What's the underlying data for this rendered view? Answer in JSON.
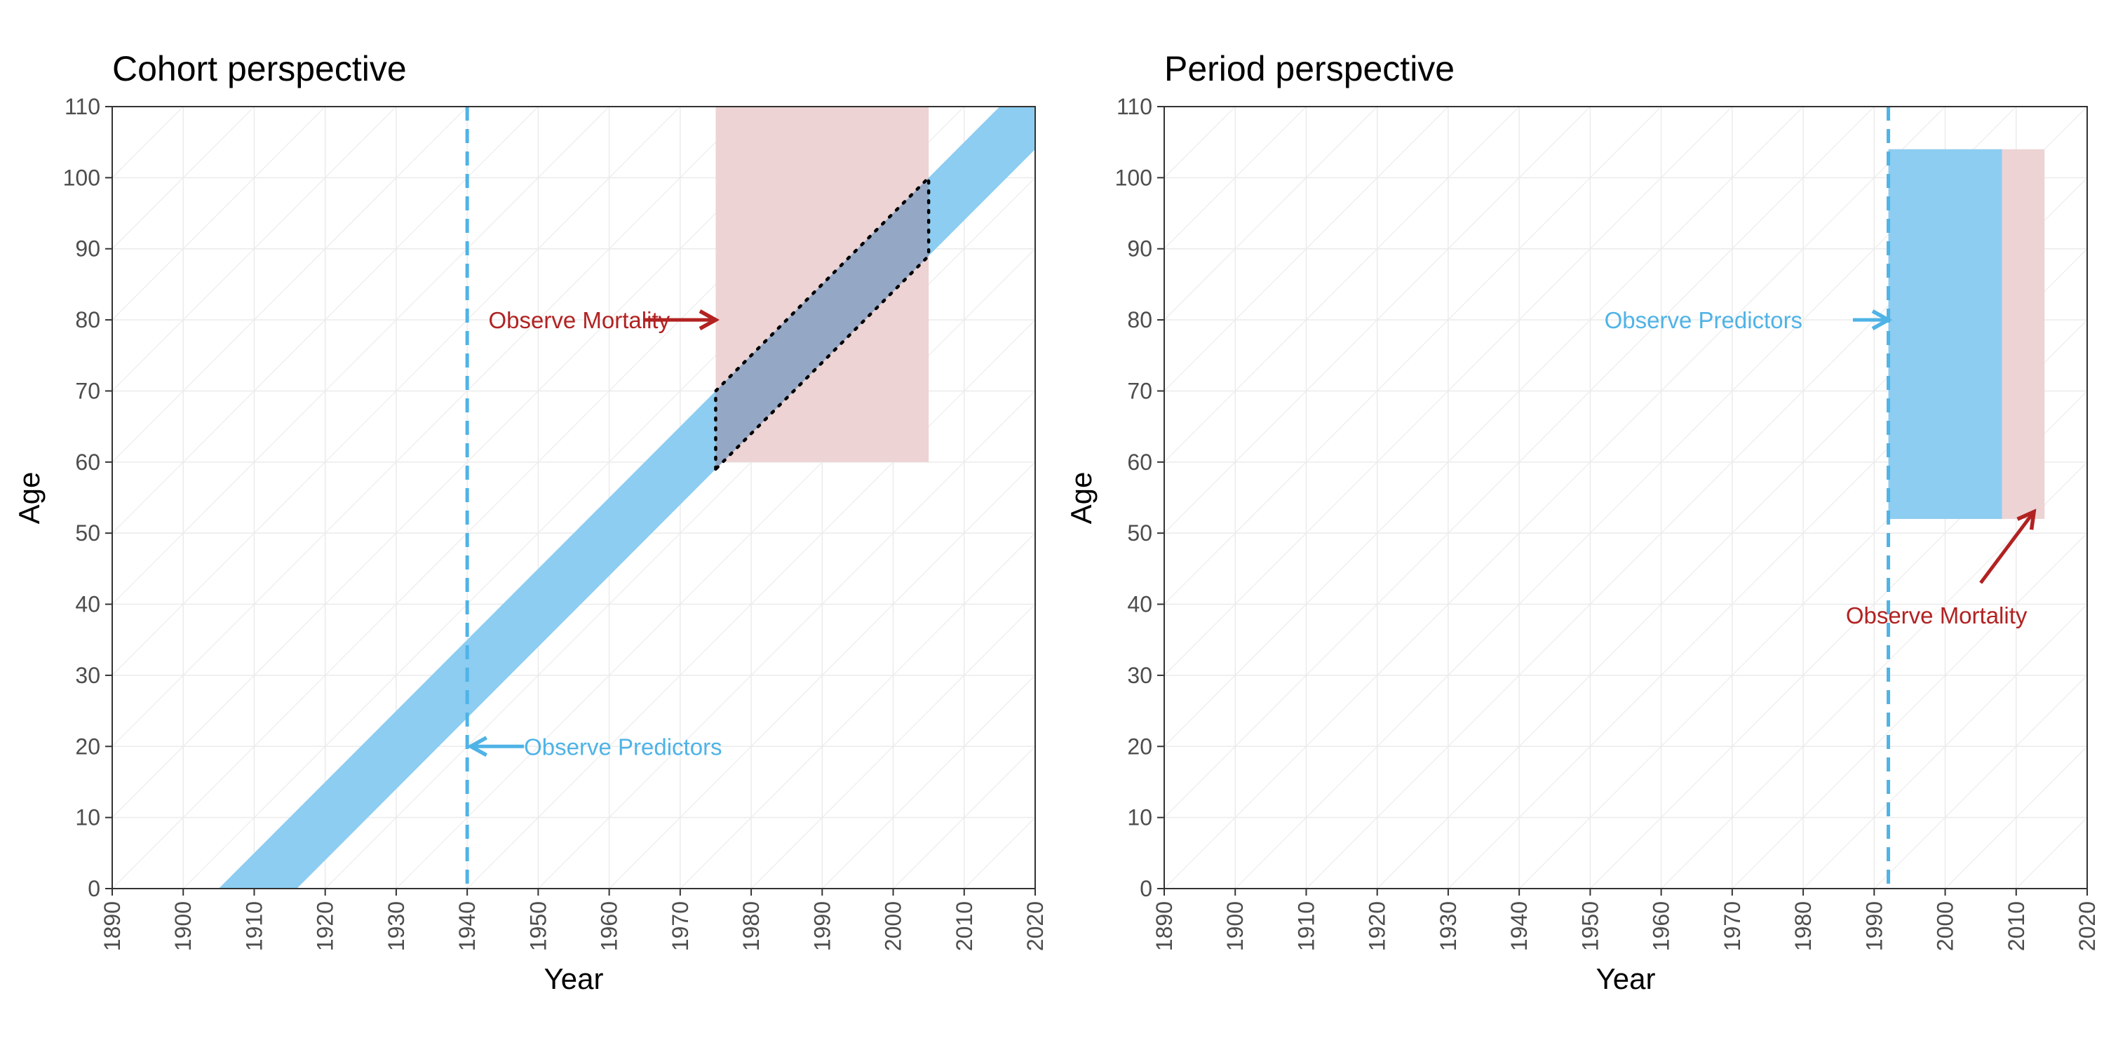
{
  "colors": {
    "predictor": "#4fb3e6",
    "predictor_fill": "#8ccdf1",
    "mortality": "#b22222",
    "mortality_fill": "#edd3d4",
    "overlap_fill": "#94a8c6",
    "grid": "#ebebeb",
    "panel_border": "#333333"
  },
  "chart_data": [
    {
      "type": "area",
      "title": "Cohort perspective",
      "xlabel": "Year",
      "ylabel": "Age",
      "xlim": [
        1890,
        2020
      ],
      "ylim": [
        0,
        110
      ],
      "x_ticks": [
        "1890",
        "1900",
        "1910",
        "1920",
        "1930",
        "1940",
        "1950",
        "1960",
        "1970",
        "1980",
        "1990",
        "2000",
        "2010",
        "2020"
      ],
      "y_ticks": [
        "0",
        "10",
        "20",
        "30",
        "40",
        "50",
        "60",
        "70",
        "80",
        "90",
        "100",
        "110"
      ],
      "grid": true,
      "diagonal_lifelines": true,
      "cohort_band": {
        "birth_year_from": 1905,
        "birth_year_to": 1916
      },
      "mortality_window": {
        "years": [
          1975,
          2005
        ],
        "ages": [
          60,
          110
        ]
      },
      "overlap_region": {
        "birth_years": [
          1905,
          1916
        ],
        "years": [
          1975,
          2005
        ]
      },
      "predictor_line_year": 1940,
      "annotations": [
        {
          "text": "Observe Mortality",
          "role": "mortality",
          "text_x": 1943,
          "text_y": 80,
          "arrow_from": [
            1965,
            80
          ],
          "arrow_to": [
            1975,
            80
          ]
        },
        {
          "text": "Observe Predictors",
          "role": "predictor",
          "text_x": 1948,
          "text_y": 20,
          "arrow_from": [
            1948,
            20
          ],
          "arrow_to": [
            1940.5,
            20
          ]
        }
      ]
    },
    {
      "type": "area",
      "title": "Period perspective",
      "xlabel": "Year",
      "ylabel": "Age",
      "xlim": [
        1890,
        2020
      ],
      "ylim": [
        0,
        110
      ],
      "x_ticks": [
        "1890",
        "1900",
        "1910",
        "1920",
        "1930",
        "1940",
        "1950",
        "1960",
        "1970",
        "1980",
        "1990",
        "2000",
        "2010",
        "2020"
      ],
      "y_ticks": [
        "0",
        "10",
        "20",
        "30",
        "40",
        "50",
        "60",
        "70",
        "80",
        "90",
        "100",
        "110"
      ],
      "grid": true,
      "diagonal_lifelines": true,
      "mortality_window": {
        "years": [
          1992,
          2014
        ],
        "ages": [
          52,
          104
        ]
      },
      "predictor_window": {
        "years": [
          1992,
          2008
        ],
        "ages": [
          52,
          104
        ]
      },
      "predictor_line_year": 1992,
      "annotations": [
        {
          "text": "Observe Predictors",
          "role": "predictor",
          "text_x": 1952,
          "text_y": 80,
          "arrow_from": [
            1987,
            80
          ],
          "arrow_to": [
            1992,
            80
          ]
        },
        {
          "text": "Observe Mortality",
          "role": "mortality",
          "text_x": 1986,
          "text_y": 38.5,
          "arrow_from": [
            2005,
            43
          ],
          "arrow_to": [
            2012.5,
            53
          ]
        }
      ]
    }
  ]
}
